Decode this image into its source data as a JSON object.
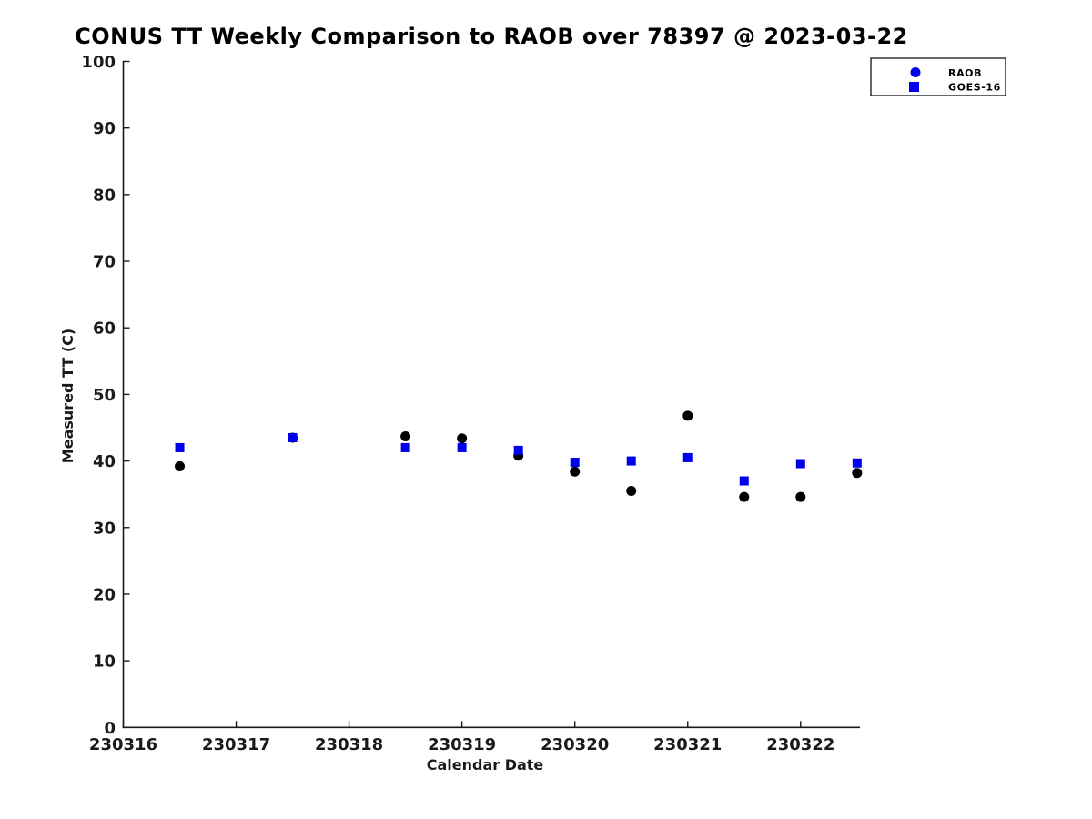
{
  "chart_data": {
    "type": "scatter",
    "title": "CONUS TT Weekly Comparison to RAOB over 78397 @ 2023-03-22",
    "xlabel": "Calendar Date",
    "ylabel": "Measured TT (C)",
    "xlim": [
      230316,
      230322.52
    ],
    "ylim": [
      0,
      100
    ],
    "x_ticks": [
      230316,
      230317,
      230318,
      230319,
      230320,
      230321,
      230322
    ],
    "y_ticks": [
      0,
      10,
      20,
      30,
      40,
      50,
      60,
      70,
      80,
      90,
      100
    ],
    "grid": false,
    "background_color": "#ffffff",
    "x": [
      230316.5,
      230317.5,
      230318.5,
      230319,
      230319.5,
      230320,
      230320.5,
      230321,
      230321.5,
      230322,
      230322.5
    ],
    "series": [
      {
        "name": "RAOB",
        "marker": "circle",
        "data_color": "#000000",
        "legend_color": "#0000EE",
        "values": [
          39.2,
          43.5,
          43.7,
          43.4,
          40.8,
          38.4,
          35.5,
          46.8,
          34.6,
          34.6,
          38.2
        ]
      },
      {
        "name": "GOES-16",
        "marker": "square",
        "data_color": "#0000EE",
        "legend_color": "#0000EE",
        "values": [
          42.0,
          43.5,
          42.0,
          42.0,
          41.6,
          39.8,
          40.0,
          40.5,
          37.0,
          39.6,
          39.7
        ]
      }
    ],
    "legend_position": "top-right"
  }
}
